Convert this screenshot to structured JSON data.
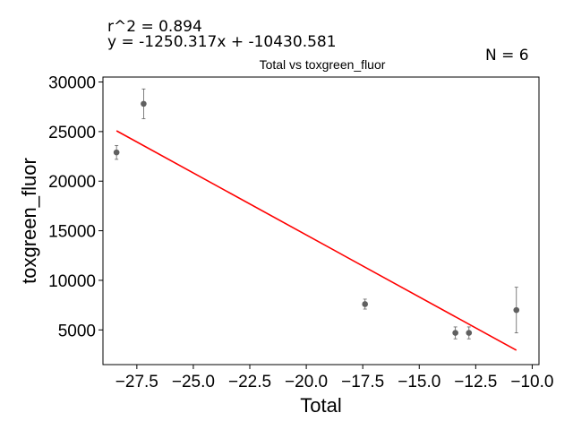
{
  "annotations": {
    "r2": "r^2 = 0.894",
    "equation": "y = -1250.317x + -10430.581",
    "n": "N = 6"
  },
  "chart_data": {
    "type": "scatter",
    "title": "Total vs toxgreen_fluor",
    "xlabel": "Total",
    "ylabel": "toxgreen_fluor",
    "xlim": [
      -29.0,
      -9.7
    ],
    "ylim": [
      1500,
      30500
    ],
    "xticks": [
      -27.5,
      -25.0,
      -22.5,
      -20.0,
      -17.5,
      -15.0,
      -12.5,
      -10.0
    ],
    "xtick_labels": [
      "−27.5",
      "−25.0",
      "−22.5",
      "−20.0",
      "−17.5",
      "−15.0",
      "−12.5",
      "−10.0"
    ],
    "yticks": [
      5000,
      10000,
      15000,
      20000,
      25000,
      30000
    ],
    "ytick_labels": [
      "5000",
      "10000",
      "15000",
      "20000",
      "25000",
      "30000"
    ],
    "grid": false,
    "points": [
      {
        "x": -28.4,
        "y": 22900,
        "err": 700
      },
      {
        "x": -27.2,
        "y": 27800,
        "err": 1500
      },
      {
        "x": -17.4,
        "y": 7600,
        "err": 500
      },
      {
        "x": -13.4,
        "y": 4700,
        "err": 600
      },
      {
        "x": -12.8,
        "y": 4700,
        "err": 600
      },
      {
        "x": -10.7,
        "y": 7000,
        "err": 2300
      }
    ],
    "fit": {
      "slope": -1250.317,
      "intercept": -10430.581,
      "x_range": [
        -28.4,
        -10.7
      ]
    },
    "colors": {
      "points": "#606060",
      "fit": "#ff0000",
      "axes": "#000000"
    }
  }
}
